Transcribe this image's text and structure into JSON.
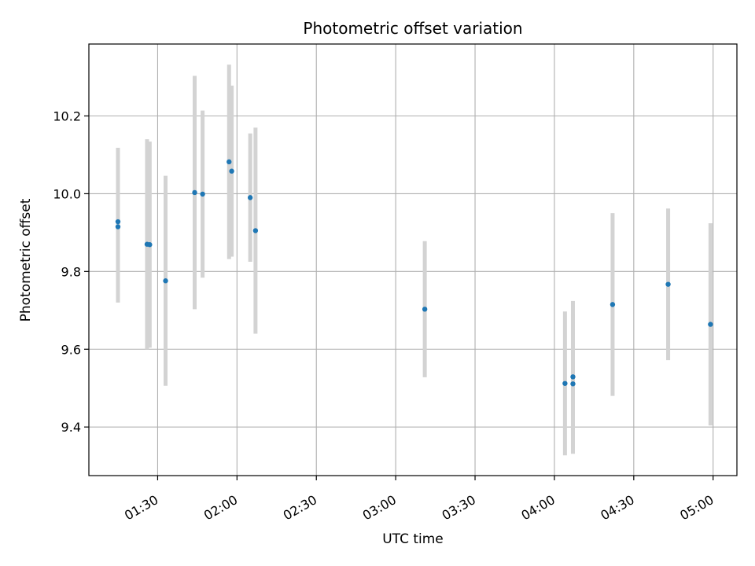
{
  "chart_data": {
    "type": "scatter",
    "title": "Photometric offset variation",
    "xlabel": "UTC time",
    "ylabel": "Photometric offset",
    "x_ticks": [
      "01:30",
      "02:00",
      "02:30",
      "03:00",
      "03:30",
      "04:00",
      "04:30",
      "05:00"
    ],
    "y_ticks": [
      "9.4",
      "9.6",
      "9.8",
      "10.0",
      "10.2"
    ],
    "xlim": [
      "01:04",
      "05:09"
    ],
    "ylim": [
      9.275,
      10.385
    ],
    "grid": true,
    "series": [
      {
        "points": [
          {
            "x": "01:15",
            "y": 9.928,
            "err": 0.19
          },
          {
            "x": "01:15",
            "y": 9.915,
            "err": 0.195
          },
          {
            "x": "01:26",
            "y": 9.87,
            "err": 0.27
          },
          {
            "x": "01:27",
            "y": 9.869,
            "err": 0.265
          },
          {
            "x": "01:33",
            "y": 9.776,
            "err": 0.27
          },
          {
            "x": "01:44",
            "y": 10.003,
            "err": 0.3
          },
          {
            "x": "01:47",
            "y": 9.999,
            "err": 0.215
          },
          {
            "x": "01:57",
            "y": 10.082,
            "err": 0.25
          },
          {
            "x": "01:58",
            "y": 10.058,
            "err": 0.22
          },
          {
            "x": "02:05",
            "y": 9.99,
            "err": 0.165
          },
          {
            "x": "02:07",
            "y": 9.905,
            "err": 0.265
          },
          {
            "x": "03:11",
            "y": 9.703,
            "err": 0.175
          },
          {
            "x": "04:04",
            "y": 9.512,
            "err": 0.185
          },
          {
            "x": "04:07",
            "y": 9.511,
            "err": 0.18
          },
          {
            "x": "04:07",
            "y": 9.529,
            "err": 0.195
          },
          {
            "x": "04:22",
            "y": 9.715,
            "err": 0.235
          },
          {
            "x": "04:43",
            "y": 9.767,
            "err": 0.195
          },
          {
            "x": "04:59",
            "y": 9.664,
            "err": 0.26
          }
        ]
      }
    ],
    "colors": {
      "point": "#1f77b4",
      "errorbar": "#d3d3d3",
      "grid": "#b0b0b0",
      "axis": "#000000"
    }
  }
}
